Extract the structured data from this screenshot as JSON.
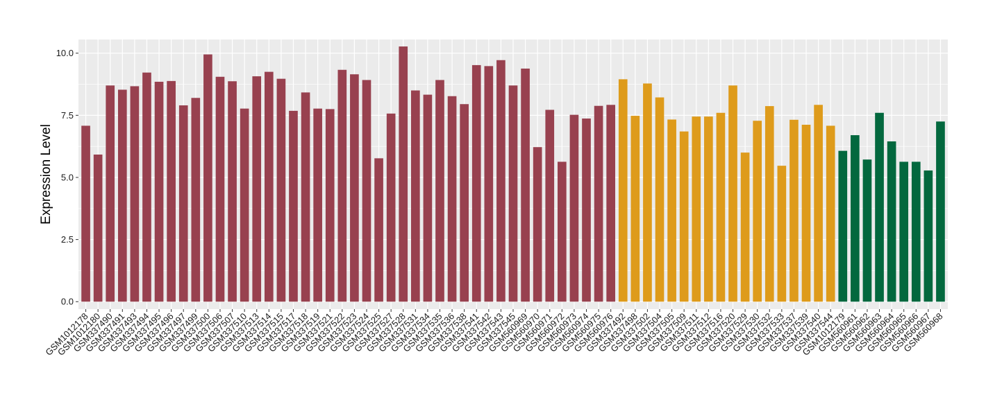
{
  "chart_data": {
    "type": "bar",
    "xlabel": "",
    "ylabel": "Expression Level",
    "ylim": [
      -0.3,
      10.55
    ],
    "yticks": [
      0.0,
      2.5,
      5.0,
      7.5,
      10.0
    ],
    "ytick_labels": [
      "0.0",
      "2.5",
      "5.0",
      "7.5",
      "10.0"
    ],
    "grid": true,
    "legend": "none",
    "panel_background": "#ebebeb",
    "group_colors": [
      "#98414f",
      "#de9b1b",
      "#03683e"
    ],
    "categories": [
      "GSM1012178",
      "GSM1012180",
      "GSM337490",
      "GSM337491",
      "GSM337493",
      "GSM337494",
      "GSM337495",
      "GSM337496",
      "GSM337497",
      "GSM337499",
      "GSM337500",
      "GSM337506",
      "GSM337507",
      "GSM337510",
      "GSM337513",
      "GSM337514",
      "GSM337515",
      "GSM337517",
      "GSM337518",
      "GSM337519",
      "GSM337521",
      "GSM337522",
      "GSM337523",
      "GSM337524",
      "GSM337525",
      "GSM337527",
      "GSM337528",
      "GSM337531",
      "GSM337534",
      "GSM337535",
      "GSM337536",
      "GSM337538",
      "GSM337541",
      "GSM337542",
      "GSM337543",
      "GSM337545",
      "GSM560969",
      "GSM560970",
      "GSM560971",
      "GSM560972",
      "GSM560973",
      "GSM560974",
      "GSM560975",
      "GSM560976",
      "GSM337492",
      "GSM337498",
      "GSM337502",
      "GSM337504",
      "GSM337505",
      "GSM337509",
      "GSM337511",
      "GSM337512",
      "GSM337516",
      "GSM337520",
      "GSM337529",
      "GSM337530",
      "GSM337532",
      "GSM337533",
      "GSM337537",
      "GSM337539",
      "GSM337540",
      "GSM337544",
      "GSM1012179",
      "GSM560961",
      "GSM560962",
      "GSM560963",
      "GSM560964",
      "GSM560965",
      "GSM560966",
      "GSM560967",
      "GSM560968"
    ],
    "values": [
      7.08,
      5.92,
      8.7,
      8.53,
      8.67,
      9.22,
      8.85,
      8.88,
      7.9,
      8.2,
      9.95,
      9.05,
      8.87,
      7.77,
      9.07,
      9.25,
      8.97,
      7.68,
      8.42,
      7.77,
      7.75,
      9.33,
      9.15,
      8.92,
      5.77,
      7.57,
      10.27,
      8.5,
      8.33,
      8.92,
      8.27,
      7.95,
      9.52,
      9.48,
      9.72,
      8.7,
      9.38,
      6.22,
      7.72,
      5.63,
      7.52,
      7.37,
      7.88,
      7.92,
      8.95,
      7.48,
      8.78,
      8.22,
      7.33,
      6.85,
      7.45,
      7.45,
      7.6,
      8.7,
      6.0,
      7.28,
      7.87,
      5.47,
      7.32,
      7.12,
      7.92,
      7.08,
      6.07,
      6.7,
      5.72,
      7.6,
      6.45,
      5.63,
      5.63,
      5.28,
      7.25
    ],
    "groups": [
      0,
      0,
      0,
      0,
      0,
      0,
      0,
      0,
      0,
      0,
      0,
      0,
      0,
      0,
      0,
      0,
      0,
      0,
      0,
      0,
      0,
      0,
      0,
      0,
      0,
      0,
      0,
      0,
      0,
      0,
      0,
      0,
      0,
      0,
      0,
      0,
      0,
      0,
      0,
      0,
      0,
      0,
      0,
      0,
      1,
      1,
      1,
      1,
      1,
      1,
      1,
      1,
      1,
      1,
      1,
      1,
      1,
      1,
      1,
      1,
      1,
      1,
      2,
      2,
      2,
      2,
      2,
      2,
      2,
      2,
      2
    ]
  }
}
